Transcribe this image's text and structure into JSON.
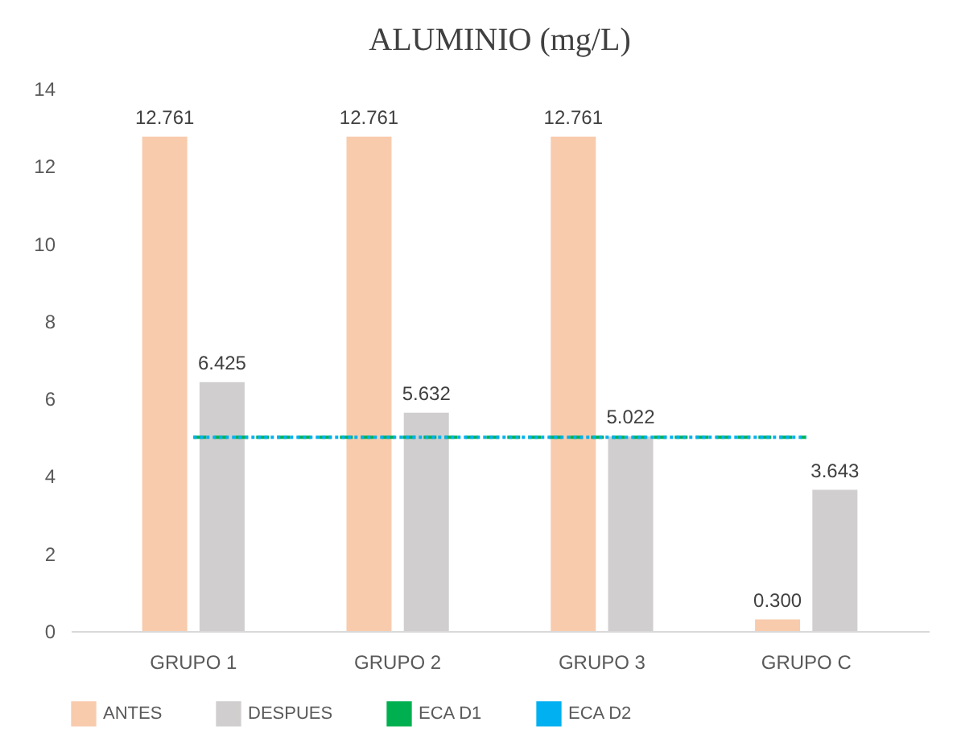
{
  "chart_data": {
    "type": "bar",
    "title": "ALUMINIO (mg/L)",
    "categories": [
      "GRUPO 1",
      "GRUPO 2",
      "GRUPO 3",
      "GRUPO C"
    ],
    "series": [
      {
        "name": "ANTES",
        "color": "#f8cbad",
        "values": [
          12.761,
          12.761,
          12.761,
          0.3
        ],
        "value_labels": [
          "12.761",
          "12.761",
          "12.761",
          "0.300"
        ]
      },
      {
        "name": "DESPUES",
        "color": "#d0cece",
        "values": [
          6.425,
          5.632,
          5.022,
          3.643
        ],
        "value_labels": [
          "6.425",
          "5.632",
          "5.022",
          "3.643"
        ]
      },
      {
        "name": "ECA D1",
        "type": "line",
        "color": "#00b050",
        "line_style": "dashed",
        "values": [
          5,
          5,
          5,
          5
        ]
      },
      {
        "name": "ECA D2",
        "type": "line",
        "color": "#00b0f0",
        "line_style": "dotted",
        "values": [
          5,
          5,
          5,
          5
        ]
      }
    ],
    "ylim": [
      0,
      14
    ],
    "yticks": [
      0,
      2,
      4,
      6,
      8,
      10,
      12,
      14
    ],
    "grid": false,
    "legend": "bottom",
    "marker": "none"
  }
}
